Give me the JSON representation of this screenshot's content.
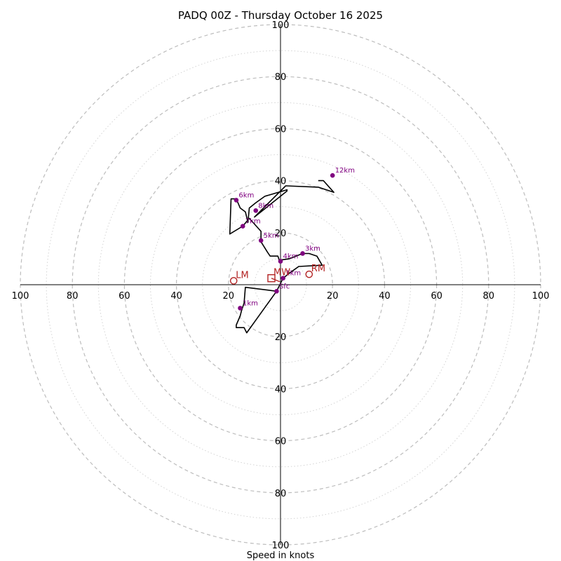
{
  "chart_data": {
    "type": "hodograph",
    "title": "PADQ 00Z - Thursday October 16 2025",
    "xlabel": "Speed in knots",
    "ring_max": 100,
    "major_rings": [
      20,
      40,
      60,
      80,
      100
    ],
    "minor_rings": [
      10,
      30,
      50,
      70,
      90
    ],
    "tick_labels": {
      "x_negative": [
        "100",
        "80",
        "60",
        "40",
        "20"
      ],
      "x_positive": [
        "20",
        "40",
        "60",
        "80",
        "100"
      ],
      "y_positive": [
        "100",
        "80",
        "60",
        "40",
        "20"
      ],
      "y_negative": [
        "20",
        "40",
        "60",
        "80",
        "100"
      ]
    },
    "trace": [
      [
        -1.5,
        -2.5
      ],
      [
        -13.5,
        -1
      ],
      [
        -14,
        -7
      ],
      [
        -15,
        -10
      ],
      [
        -15.5,
        -12
      ],
      [
        -17,
        -15.5
      ],
      [
        -17,
        -16.5
      ],
      [
        -14,
        -16.5
      ],
      [
        -13,
        -18.5
      ],
      [
        -1.5,
        -2.5
      ],
      [
        1,
        2.5
      ],
      [
        3.5,
        4.5
      ],
      [
        7,
        7
      ],
      [
        16,
        7.5
      ],
      [
        14,
        11
      ],
      [
        11,
        12
      ],
      [
        8.5,
        12
      ],
      [
        3.5,
        10
      ],
      [
        0,
        9.5
      ],
      [
        -0.5,
        9.5
      ],
      [
        -1,
        11
      ],
      [
        -4,
        11
      ],
      [
        -5,
        12.5
      ],
      [
        -7.5,
        16.5
      ],
      [
        -7.5,
        20.5
      ],
      [
        -12,
        25.5
      ],
      [
        -14.5,
        22.5
      ],
      [
        -19.5,
        19.5
      ],
      [
        -19,
        33
      ],
      [
        -17,
        33
      ],
      [
        -15.5,
        29.5
      ],
      [
        -13.5,
        28
      ],
      [
        -12.5,
        24
      ],
      [
        -12,
        29.5
      ],
      [
        -9.5,
        31.5
      ],
      [
        -6,
        34
      ],
      [
        2.5,
        36.5
      ],
      [
        2.5,
        36
      ],
      [
        -10,
        26
      ],
      [
        2,
        38
      ],
      [
        14.5,
        37.5
      ],
      [
        20.5,
        35.5
      ],
      [
        16.5,
        40
      ],
      [
        14.5,
        40
      ]
    ],
    "height_markers": [
      {
        "label": "Sfc",
        "u": -1.5,
        "v": -2.5
      },
      {
        "label": "1km",
        "u": -15.5,
        "v": -9
      },
      {
        "label": "1km",
        "u": 1,
        "v": 2.5
      },
      {
        "label": "3km",
        "u": 8.5,
        "v": 12
      },
      {
        "label": "4km",
        "u": 0,
        "v": 9
      },
      {
        "label": "5km",
        "u": -7.5,
        "v": 17
      },
      {
        "label": "7km",
        "u": -14.5,
        "v": 22.5
      },
      {
        "label": "8km",
        "u": -9.5,
        "v": 28.5
      },
      {
        "label": "6km",
        "u": -17,
        "v": 32.5
      },
      {
        "label": "12km",
        "u": 20,
        "v": 42
      }
    ],
    "storm_motions": [
      {
        "label": "LM",
        "u": -18,
        "v": 1.5,
        "marker": "circle"
      },
      {
        "label": "RM",
        "u": 11,
        "v": 4,
        "marker": "circle"
      },
      {
        "label": "MW",
        "u": -3.5,
        "v": 2.5,
        "marker": "square"
      }
    ],
    "colors": {
      "trace": "#000000",
      "height_marker": "#800080",
      "storm_motion": "#b22222",
      "ring_major": "#bdbdbd",
      "ring_minor": "#d3d3d3"
    }
  }
}
